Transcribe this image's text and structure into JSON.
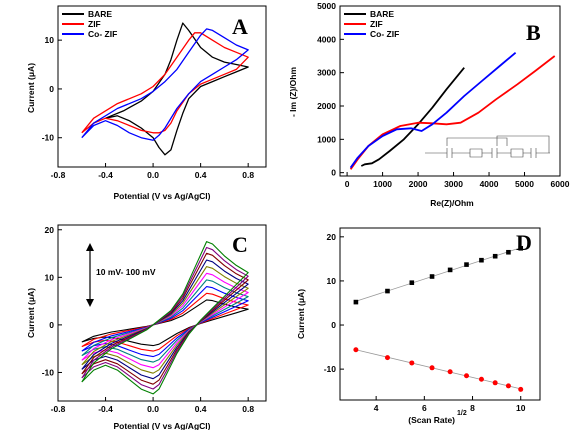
{
  "chart_data": [
    {
      "panel": "A",
      "type": "line",
      "xlabel": "Potential (V vs Ag/AgCl)",
      "ylabel": "Current (μA)",
      "xlim": [
        -0.8,
        0.95
      ],
      "ylim": [
        -16,
        17
      ],
      "xticks": [
        -0.8,
        -0.4,
        0.0,
        0.4,
        0.8
      ],
      "xtick_labels": [
        "-0.8",
        "-0.4",
        "0.0",
        "0.4",
        "0.8"
      ],
      "yticks": [
        -10,
        0,
        10
      ],
      "ytick_labels": [
        "-10",
        "0",
        "10"
      ],
      "legend": {
        "position": "top-left",
        "entries": [
          "BARE",
          "ZIF",
          "Co- ZIF"
        ]
      },
      "series": [
        {
          "name": "BARE",
          "color": "#000000",
          "x": [
            -0.4,
            -0.25,
            -0.1,
            0.0,
            0.1,
            0.15,
            0.2,
            0.25,
            0.3,
            0.4,
            0.5,
            0.6,
            0.7,
            0.8,
            0.7,
            0.6,
            0.5,
            0.4,
            0.3,
            0.25,
            0.2,
            0.15,
            0.1,
            0.05,
            0.0,
            -0.1,
            -0.2,
            -0.3,
            -0.4
          ],
          "y": [
            -6,
            -4.5,
            -2.5,
            -0.5,
            3,
            6,
            10,
            13.5,
            12,
            8.5,
            6.5,
            5.5,
            5,
            4.5,
            3.5,
            2.5,
            1.5,
            0.5,
            -2,
            -5,
            -8.5,
            -12.5,
            -13.5,
            -12,
            -10,
            -8,
            -6.5,
            -5.5,
            -6
          ]
        },
        {
          "name": "ZIF",
          "color": "#ff0000",
          "x": [
            -0.6,
            -0.5,
            -0.3,
            -0.1,
            0.0,
            0.1,
            0.2,
            0.3,
            0.35,
            0.4,
            0.5,
            0.6,
            0.7,
            0.8,
            0.7,
            0.6,
            0.5,
            0.4,
            0.3,
            0.2,
            0.15,
            0.1,
            0.05,
            0.0,
            -0.1,
            -0.2,
            -0.3,
            -0.4,
            -0.5,
            -0.6
          ],
          "y": [
            -9,
            -6,
            -3,
            -1,
            0.5,
            3,
            6.5,
            10,
            11.5,
            11.5,
            10,
            8.5,
            7.5,
            6.5,
            4,
            3,
            2,
            1,
            -1,
            -4.5,
            -7,
            -8.5,
            -9,
            -9,
            -8.5,
            -7.5,
            -6.5,
            -6,
            -7,
            -9
          ]
        },
        {
          "name": "Co- ZIF",
          "color": "#0000ff",
          "x": [
            -0.6,
            -0.5,
            -0.3,
            -0.1,
            0.0,
            0.1,
            0.2,
            0.3,
            0.4,
            0.45,
            0.5,
            0.6,
            0.7,
            0.8,
            0.7,
            0.6,
            0.5,
            0.4,
            0.3,
            0.2,
            0.1,
            0.05,
            0.0,
            -0.1,
            -0.2,
            -0.3,
            -0.4,
            -0.5,
            -0.6
          ],
          "y": [
            -10,
            -7,
            -4,
            -2,
            -0.5,
            1.5,
            4,
            7.5,
            11,
            12.3,
            12,
            10.5,
            9,
            8,
            6,
            4.5,
            3,
            1.5,
            -1,
            -4,
            -8,
            -9.5,
            -10.5,
            -10,
            -9,
            -7.5,
            -6.5,
            -7.5,
            -10
          ]
        }
      ]
    },
    {
      "panel": "B",
      "type": "line",
      "xlabel": "Re(Z)/Ohm",
      "ylabel": "- Im (Z)/Ohm",
      "xlim": [
        -200,
        6000
      ],
      "ylim": [
        -100,
        5000
      ],
      "xticks": [
        0,
        1000,
        2000,
        3000,
        4000,
        5000,
        6000
      ],
      "xtick_labels": [
        "0",
        "1000",
        "2000",
        "3000",
        "4000",
        "5000",
        "6000"
      ],
      "yticks": [
        0,
        1000,
        2000,
        3000,
        4000,
        5000
      ],
      "ytick_labels": [
        "0",
        "1000",
        "2000",
        "3000",
        "4000",
        "5000"
      ],
      "legend": {
        "position": "top-left",
        "entries": [
          "BARE",
          "ZIF",
          "Co- ZIF"
        ]
      },
      "series": [
        {
          "name": "BARE",
          "color": "#000000",
          "x": [
            400,
            500,
            700,
            900,
            1200,
            1600,
            2000,
            2400,
            2800,
            3300
          ],
          "y": [
            200,
            250,
            280,
            400,
            650,
            1000,
            1450,
            1950,
            2500,
            3150
          ]
        },
        {
          "name": "ZIF",
          "color": "#ff0000",
          "x": [
            100,
            300,
            600,
            1000,
            1500,
            2000,
            2400,
            2800,
            3200,
            3700,
            4200,
            4800,
            5300,
            5850
          ],
          "y": [
            100,
            400,
            800,
            1150,
            1400,
            1500,
            1480,
            1450,
            1500,
            1800,
            2200,
            2650,
            3050,
            3500
          ]
        },
        {
          "name": "Co- ZIF",
          "color": "#0000ff",
          "x": [
            100,
            300,
            600,
            1000,
            1400,
            1800,
            2100,
            2400,
            2800,
            3300,
            3800,
            4300,
            4750
          ],
          "y": [
            150,
            450,
            800,
            1100,
            1300,
            1330,
            1250,
            1450,
            1800,
            2300,
            2750,
            3200,
            3600
          ]
        }
      ]
    },
    {
      "panel": "C",
      "type": "line",
      "xlabel": "Potential (V vs Ag/AgCl)",
      "ylabel": "Current (μA)",
      "xlim": [
        -0.8,
        0.95
      ],
      "ylim": [
        -16,
        21
      ],
      "xticks": [
        -0.8,
        -0.4,
        0.0,
        0.4,
        0.8
      ],
      "xtick_labels": [
        "-0.8",
        "-0.4",
        "0.0",
        "0.4",
        "0.8"
      ],
      "yticks": [
        -10,
        0,
        10,
        20
      ],
      "ytick_labels": [
        "-10",
        "0",
        "10",
        "20"
      ],
      "annotation": "10 mV- 100 mV",
      "series": [
        {
          "color": "#000000",
          "scale": 0.3
        },
        {
          "color": "#ff0000",
          "scale": 0.38
        },
        {
          "color": "#0000ff",
          "scale": 0.46
        },
        {
          "color": "#008080",
          "scale": 0.54
        },
        {
          "color": "#ff00ff",
          "scale": 0.62
        },
        {
          "color": "#808000",
          "scale": 0.7
        },
        {
          "color": "#000080",
          "scale": 0.78
        },
        {
          "color": "#800000",
          "scale": 0.86
        },
        {
          "color": "#800080",
          "scale": 0.93
        },
        {
          "color": "#008000",
          "scale": 1.0
        }
      ],
      "template": {
        "x": [
          -0.6,
          -0.5,
          -0.35,
          -0.2,
          -0.05,
          0.05,
          0.15,
          0.25,
          0.35,
          0.45,
          0.5,
          0.6,
          0.7,
          0.8,
          0.7,
          0.6,
          0.5,
          0.4,
          0.3,
          0.2,
          0.1,
          0.05,
          0.0,
          -0.1,
          -0.2,
          -0.3,
          -0.4,
          -0.5,
          -0.6
        ],
        "y": [
          -12,
          -8,
          -5,
          -3,
          -1,
          1,
          3,
          6.5,
          12,
          17.5,
          17,
          14.5,
          12.5,
          11,
          8.5,
          6,
          3.5,
          1,
          -2,
          -6,
          -11,
          -13.5,
          -14.5,
          -13.5,
          -11.5,
          -9.5,
          -8.5,
          -9.5,
          -12
        ]
      }
    },
    {
      "panel": "D",
      "type": "scatter",
      "xlabel": "(Scan Rate)",
      "xlabel_sup": "1/2",
      "ylabel": "Current (μA)",
      "xlim": [
        2.5,
        10.8
      ],
      "ylim": [
        -17,
        22
      ],
      "xticks": [
        4,
        6,
        8,
        10
      ],
      "xtick_labels": [
        "4",
        "6",
        "8",
        "10"
      ],
      "yticks": [
        -10,
        0,
        10,
        20
      ],
      "ytick_labels": [
        "-10",
        "0",
        "10",
        "20"
      ],
      "x": [
        3.16,
        4.47,
        5.48,
        6.32,
        7.07,
        7.75,
        8.37,
        8.94,
        9.49,
        10.0
      ],
      "series": [
        {
          "color": "#000000",
          "marker": "square",
          "values": [
            5.2,
            7.7,
            9.6,
            11.0,
            12.5,
            13.7,
            14.7,
            15.6,
            16.5,
            17.4
          ]
        },
        {
          "color": "#ff0000",
          "marker": "circle",
          "values": [
            -5.6,
            -7.4,
            -8.6,
            -9.7,
            -10.6,
            -11.5,
            -12.3,
            -13.1,
            -13.8,
            -14.6
          ]
        }
      ]
    }
  ],
  "panel_letters": {
    "A": "A",
    "B": "B",
    "C": "C",
    "D": "D"
  }
}
